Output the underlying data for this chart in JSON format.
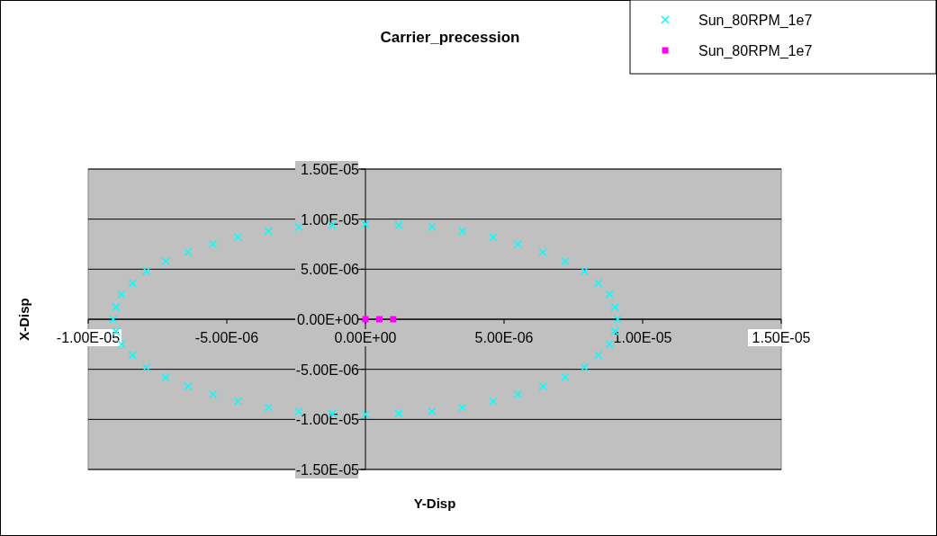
{
  "chart_data": {
    "type": "scatter",
    "title": "Carrier_precession",
    "xlabel": "Y-Disp",
    "ylabel": "X-Disp",
    "xlim": [
      -1e-05,
      1.5e-05
    ],
    "xticks": [
      {
        "value": -1e-05,
        "label": "-1.00E-05"
      },
      {
        "value": -5e-06,
        "label": "-5.00E-06"
      },
      {
        "value": 0,
        "label": "0.00E+00"
      },
      {
        "value": 5e-06,
        "label": "5.00E-06"
      },
      {
        "value": 1e-05,
        "label": "1.00E-05"
      },
      {
        "value": 1.5e-05,
        "label": "1.50E-05"
      }
    ],
    "ylim": [
      -1.5e-05,
      1.5e-05
    ],
    "yticks": [
      {
        "value": -1.5e-05,
        "label": "-1.50E-05"
      },
      {
        "value": -1e-05,
        "label": "-1.00E-05"
      },
      {
        "value": -5e-06,
        "label": "-5.00E-06"
      },
      {
        "value": 0,
        "label": "0.00E+00"
      },
      {
        "value": 5e-06,
        "label": "5.00E-06"
      },
      {
        "value": 1e-05,
        "label": "1.00E-05"
      },
      {
        "value": 1.5e-05,
        "label": "1.50E-05"
      }
    ],
    "grid": "y",
    "legend": "top right",
    "series": [
      {
        "name": "Sun_80RPM_1e7",
        "color": "#00ffff",
        "marker": "cross",
        "x": [
          9.1e-06,
          9e-06,
          8.8e-06,
          8.4e-06,
          7.9e-06,
          7.2e-06,
          6.4e-06,
          5.5e-06,
          4.6e-06,
          3.5e-06,
          2.4e-06,
          1.2e-06,
          0,
          -1.2e-06,
          -2.4e-06,
          -3.5e-06,
          -4.6e-06,
          -5.5e-06,
          -6.4e-06,
          -7.2e-06,
          -7.9e-06,
          -8.4e-06,
          -8.8e-06,
          -9e-06,
          -9.1e-06,
          -9e-06,
          -8.8e-06,
          -8.4e-06,
          -7.9e-06,
          -7.2e-06,
          -6.4e-06,
          -5.5e-06,
          -4.6e-06,
          -3.5e-06,
          -2.4e-06,
          -1.2e-06,
          0,
          1.2e-06,
          2.4e-06,
          3.5e-06,
          4.6e-06,
          5.5e-06,
          6.4e-06,
          7.2e-06,
          7.9e-06,
          8.4e-06,
          8.8e-06,
          9e-06
        ],
        "values": [
          0,
          1.2e-06,
          2.5e-06,
          3.6e-06,
          4.8e-06,
          5.8e-06,
          6.7e-06,
          7.5e-06,
          8.2e-06,
          8.8e-06,
          9.2e-06,
          9.4e-06,
          9.5e-06,
          9.4e-06,
          9.2e-06,
          8.8e-06,
          8.2e-06,
          7.5e-06,
          6.7e-06,
          5.8e-06,
          4.8e-06,
          3.6e-06,
          2.5e-06,
          1.2e-06,
          0,
          -1.2e-06,
          -2.5e-06,
          -3.6e-06,
          -4.8e-06,
          -5.8e-06,
          -6.7e-06,
          -7.5e-06,
          -8.2e-06,
          -8.8e-06,
          -9.2e-06,
          -9.4e-06,
          -9.5e-06,
          -9.4e-06,
          -9.2e-06,
          -8.8e-06,
          -8.2e-06,
          -7.5e-06,
          -6.7e-06,
          -5.8e-06,
          -4.8e-06,
          -3.6e-06,
          -2.5e-06,
          -1.2e-06
        ]
      },
      {
        "name": "Sun_80RPM_1e7",
        "color": "#ff00ff",
        "marker": "square",
        "x": [
          0,
          5e-07,
          1e-06
        ],
        "values": [
          0,
          0,
          0
        ]
      }
    ]
  }
}
